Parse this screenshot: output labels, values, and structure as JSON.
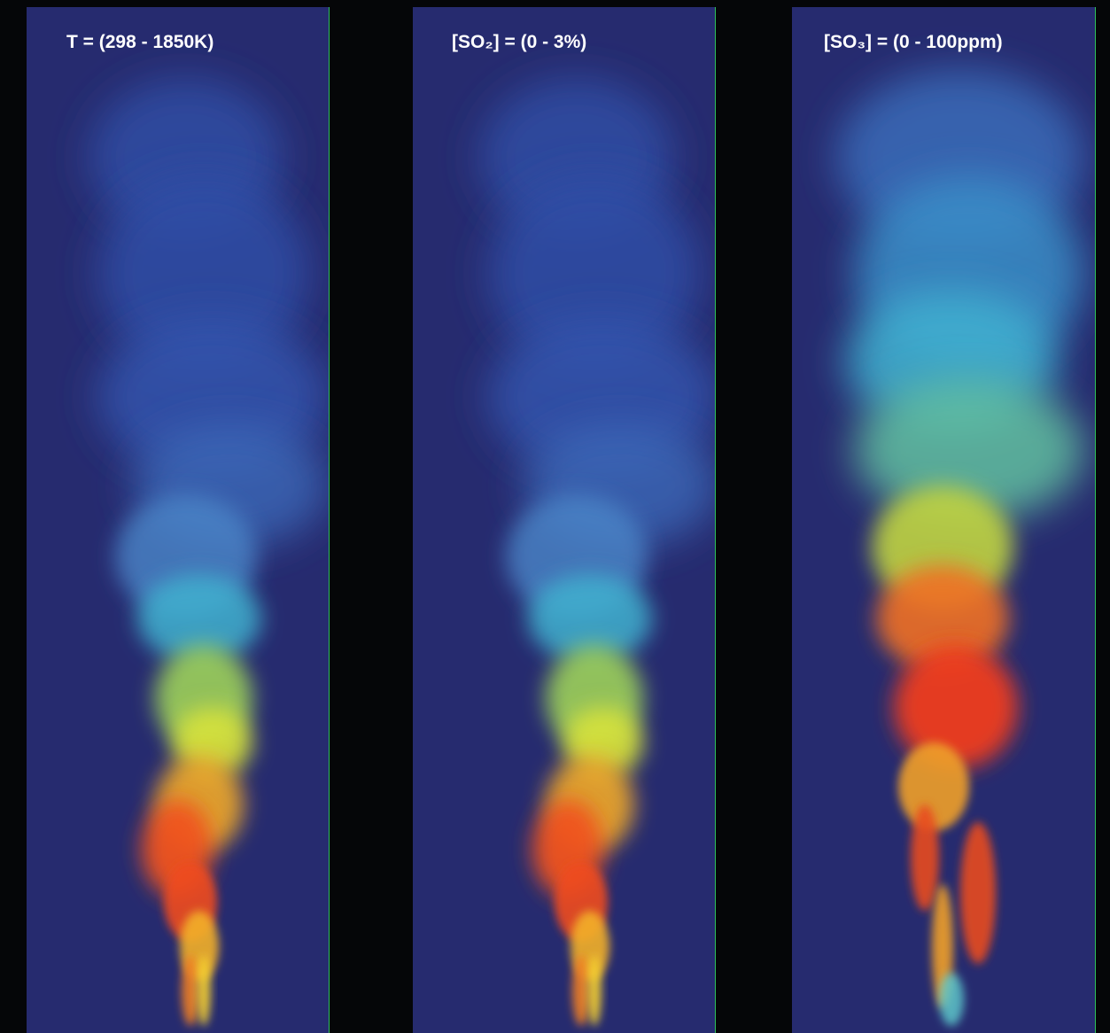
{
  "panels": [
    {
      "label": "T = (298 - 1850K)"
    },
    {
      "label": "[SO₂] = (0 - 3%)"
    },
    {
      "label": "[SO₃] = (0 - 100ppm)"
    }
  ]
}
